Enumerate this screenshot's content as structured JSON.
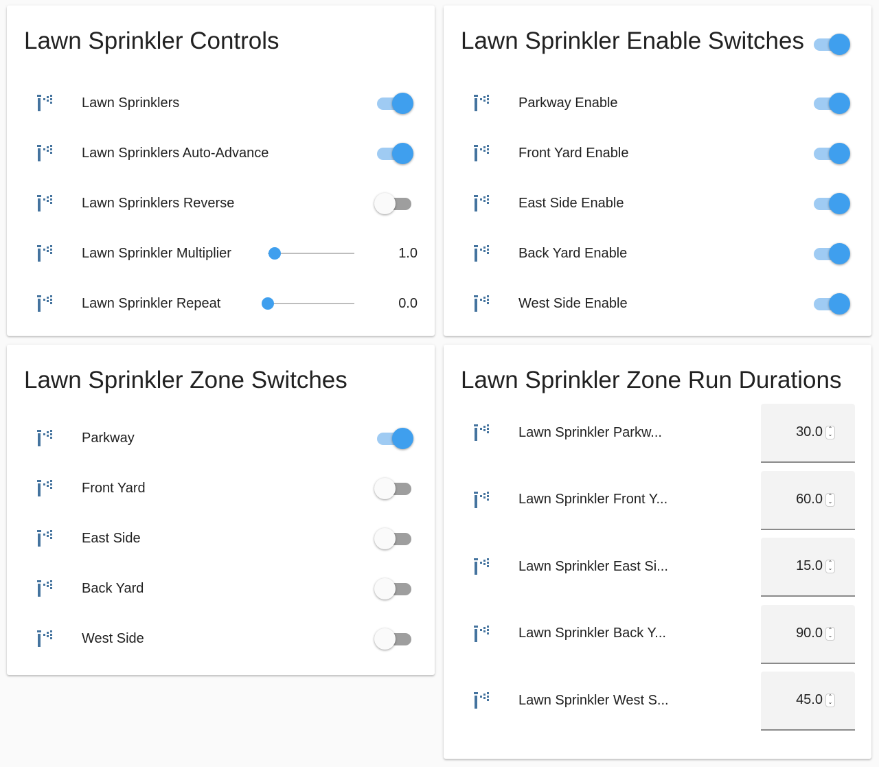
{
  "colors": {
    "accent": "#3f9fee",
    "accent_track": "#9fcbf3",
    "icon": "#44739e",
    "background": "#fafafa"
  },
  "icon": "sprinkler-icon",
  "controls": {
    "title": "Lawn Sprinkler Controls",
    "rows": [
      {
        "label": "Lawn Sprinklers",
        "type": "toggle",
        "on": true
      },
      {
        "label": "Lawn Sprinklers Auto-Advance",
        "type": "toggle",
        "on": true
      },
      {
        "label": "Lawn Sprinklers Reverse",
        "type": "toggle",
        "on": false
      },
      {
        "label": "Lawn Sprinkler Multiplier",
        "type": "slider",
        "value": "1.0",
        "fraction": 0.08
      },
      {
        "label": "Lawn Sprinkler Repeat",
        "type": "slider",
        "value": "0.0",
        "fraction": 0
      }
    ]
  },
  "enable": {
    "title": "Lawn Sprinkler Enable Switches",
    "header_toggle_on": true,
    "rows": [
      {
        "label": "Parkway Enable",
        "type": "toggle",
        "on": true
      },
      {
        "label": "Front Yard Enable",
        "type": "toggle",
        "on": true
      },
      {
        "label": "East Side Enable",
        "type": "toggle",
        "on": true
      },
      {
        "label": "Back Yard Enable",
        "type": "toggle",
        "on": true
      },
      {
        "label": "West Side Enable",
        "type": "toggle",
        "on": true
      }
    ]
  },
  "zones": {
    "title": "Lawn Sprinkler Zone Switches",
    "rows": [
      {
        "label": "Parkway",
        "type": "toggle",
        "on": true
      },
      {
        "label": "Front Yard",
        "type": "toggle",
        "on": false
      },
      {
        "label": "East Side",
        "type": "toggle",
        "on": false
      },
      {
        "label": "Back Yard",
        "type": "toggle",
        "on": false
      },
      {
        "label": "West Side",
        "type": "toggle",
        "on": false
      }
    ]
  },
  "durations": {
    "title": "Lawn Sprinkler Zone Run Durations",
    "rows": [
      {
        "label": "Lawn Sprinkler Parkw...",
        "type": "number",
        "value": "30.0"
      },
      {
        "label": "Lawn Sprinkler Front Y...",
        "type": "number",
        "value": "60.0"
      },
      {
        "label": "Lawn Sprinkler East Si...",
        "type": "number",
        "value": "15.0"
      },
      {
        "label": "Lawn Sprinkler Back Y...",
        "type": "number",
        "value": "90.0"
      },
      {
        "label": "Lawn Sprinkler West S...",
        "type": "number",
        "value": "45.0"
      }
    ]
  }
}
